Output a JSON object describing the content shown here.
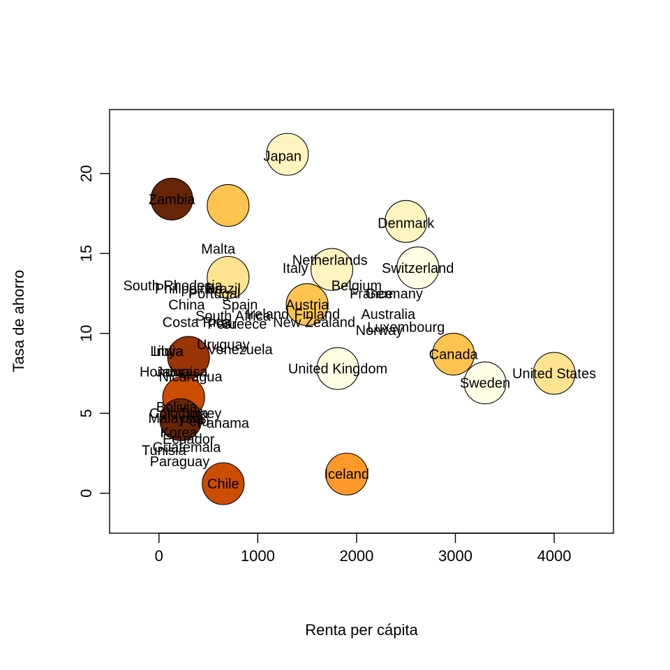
{
  "chart_data": {
    "type": "scatter",
    "title": "",
    "xlabel": "Renta per cápita",
    "ylabel": "Tasa de ahorro",
    "xlim": [
      -500,
      4600
    ],
    "ylim": [
      -2.5,
      24
    ],
    "xticks": [
      "0",
      "1000",
      "2000",
      "3000",
      "4000"
    ],
    "yticks": [
      "0",
      "5",
      "10",
      "15",
      "20"
    ],
    "grid": false,
    "bubble_size_encoding": "unlabeled",
    "points": [
      {
        "label": "Japan",
        "x": 1250,
        "y": 21.1,
        "size": 1.38,
        "color": "#FFF4C0"
      },
      {
        "label": "Zambia",
        "x": 130,
        "y": 18.4,
        "size": 1.1,
        "color": "#662506"
      },
      {
        "label": "Malta",
        "x": 600,
        "y": 15.3,
        "size": 1.22,
        "color": "#FEE391"
      },
      {
        "label": "Denmark",
        "x": 2500,
        "y": 16.9,
        "size": 0.93,
        "color": "#FFF4C0"
      },
      {
        "label": "Netherlands",
        "x": 1730,
        "y": 14.6,
        "size": 1.45,
        "color": "#FFF4C0"
      },
      {
        "label": "Italy",
        "x": 1380,
        "y": 14.1,
        "size": 1.15,
        "color": "#FFF4C0"
      },
      {
        "label": "Switzerland",
        "x": 2620,
        "y": 14.1,
        "size": 0.75,
        "color": "#FFFFE5"
      },
      {
        "label": "Belgium",
        "x": 2000,
        "y": 13.0,
        "size": 1.2,
        "color": "#FFF4C0"
      },
      {
        "label": "France",
        "x": 2150,
        "y": 12.5,
        "size": 1.15,
        "color": "#FFF4C0"
      },
      {
        "label": "Germany",
        "x": 2380,
        "y": 12.5,
        "size": 1.05,
        "color": "#FFF4C0"
      },
      {
        "label": "South Rhodesia",
        "x": 140,
        "y": 13.0,
        "size": 1.4,
        "color": "#993404"
      },
      {
        "label": "Philippines",
        "x": 300,
        "y": 12.8,
        "size": 1.3,
        "color": "#993404"
      },
      {
        "label": "Brazil",
        "x": 650,
        "y": 12.8,
        "size": 1.28,
        "color": "#CC4C02"
      },
      {
        "label": "Portugal",
        "x": 560,
        "y": 12.5,
        "size": 1.25,
        "color": "#CC4C02"
      },
      {
        "label": "Austria",
        "x": 1500,
        "y": 11.8,
        "size": 0.62,
        "color": "#FEC44F"
      },
      {
        "label": "China",
        "x": 280,
        "y": 11.8,
        "size": 1.35,
        "color": "#993404"
      },
      {
        "label": "Spain",
        "x": 820,
        "y": 11.8,
        "size": 1.3,
        "color": "#CC4C02"
      },
      {
        "label": "South Africa",
        "x": 750,
        "y": 11.1,
        "size": 1.3,
        "color": "#CC4C02"
      },
      {
        "label": "Ireland",
        "x": 1100,
        "y": 11.2,
        "size": 1.25,
        "color": "#EC7014"
      },
      {
        "label": "Finland",
        "x": 1600,
        "y": 11.2,
        "size": 1.1,
        "color": "#FEE391"
      },
      {
        "label": "Australia",
        "x": 2320,
        "y": 11.2,
        "size": 1.0,
        "color": "#FFF4C0"
      },
      {
        "label": "Costa Rica",
        "x": 380,
        "y": 10.7,
        "size": 1.3,
        "color": "#993404"
      },
      {
        "label": "Peru",
        "x": 640,
        "y": 10.6,
        "size": 1.3,
        "color": "#993404"
      },
      {
        "label": "Greece",
        "x": 860,
        "y": 10.6,
        "size": 1.3,
        "color": "#CC4C02"
      },
      {
        "label": "New Zealand",
        "x": 1570,
        "y": 10.7,
        "size": 1.05,
        "color": "#FEE391"
      },
      {
        "label": "Luxembourg",
        "x": 2500,
        "y": 10.4,
        "size": 0.72,
        "color": "#FFF4C0"
      },
      {
        "label": "Norway",
        "x": 2230,
        "y": 10.2,
        "size": 1.05,
        "color": "#FFF4C0"
      },
      {
        "label": "Uruguay",
        "x": 650,
        "y": 9.3,
        "size": 1.3,
        "color": "#993404"
      },
      {
        "label": "Venezuela",
        "x": 820,
        "y": 9.0,
        "size": 1.3,
        "color": "#CC4C02"
      },
      {
        "label": "Canada",
        "x": 2980,
        "y": 8.7,
        "size": 0.6,
        "color": "#FEC44F"
      },
      {
        "label": "Libya",
        "x": 80,
        "y": 8.9,
        "size": 0.93,
        "color": "#662506"
      },
      {
        "label": "India",
        "x": 90,
        "y": 8.9,
        "size": 0.95,
        "color": "#662506"
      },
      {
        "label": "Honduras",
        "x": 110,
        "y": 7.6,
        "size": 0.95,
        "color": "#662506"
      },
      {
        "label": "Jamaica",
        "x": 230,
        "y": 7.6,
        "size": 0.95,
        "color": "#662506"
      },
      {
        "label": "Nicaragua",
        "x": 320,
        "y": 7.3,
        "size": 0.95,
        "color": "#662506"
      },
      {
        "label": "United Kingdom",
        "x": 1810,
        "y": 7.8,
        "size": 0.48,
        "color": "#FFFFE5"
      },
      {
        "label": "United States",
        "x": 4000,
        "y": 7.5,
        "size": 0.5,
        "color": "#FEE391"
      },
      {
        "label": "Sweden",
        "x": 3300,
        "y": 6.9,
        "size": 0.55,
        "color": "#FFFFE5"
      },
      {
        "label": "Bolivia",
        "x": 180,
        "y": 5.4,
        "size": 1.0,
        "color": "#662506"
      },
      {
        "label": "Colombia",
        "x": 200,
        "y": 5.0,
        "size": 1.0,
        "color": "#662506"
      },
      {
        "label": "Turkey",
        "x": 420,
        "y": 5.0,
        "size": 1.0,
        "color": "#662506"
      },
      {
        "label": "Malaysia",
        "x": 170,
        "y": 4.7,
        "size": 1.0,
        "color": "#662506"
      },
      {
        "label": "Peru",
        "x": 360,
        "y": 4.5,
        "size": 1.0,
        "color": "#662506"
      },
      {
        "label": "Panama",
        "x": 650,
        "y": 4.4,
        "size": 1.0,
        "color": "#662506"
      },
      {
        "label": "Korea",
        "x": 200,
        "y": 3.8,
        "size": 1.0,
        "color": "#662506"
      },
      {
        "label": "Ecuador",
        "x": 300,
        "y": 3.4,
        "size": 1.0,
        "color": "#662506"
      },
      {
        "label": "Guatemala",
        "x": 280,
        "y": 2.9,
        "size": 1.0,
        "color": "#662506"
      },
      {
        "label": "Tunisia",
        "x": 50,
        "y": 2.7,
        "size": 1.0,
        "color": "#662506"
      },
      {
        "label": "Paraguay",
        "x": 210,
        "y": 2.0,
        "size": 1.0,
        "color": "#662506"
      },
      {
        "label": "Chile",
        "x": 650,
        "y": 0.6,
        "size": 0.53,
        "color": "#CC4C02"
      },
      {
        "label": "Iceland",
        "x": 1900,
        "y": 1.2,
        "size": 0.33,
        "color": "#FE9929"
      }
    ],
    "circles_drawn": [
      {
        "x": 1300,
        "y": 21.2,
        "color": "#FFF4C0"
      },
      {
        "x": 700,
        "y": 18.0,
        "color": "#FEC44F"
      },
      {
        "x": 2500,
        "y": 17.0,
        "color": "#FFF4C0"
      },
      {
        "x": 130,
        "y": 18.4,
        "color": "#662506"
      },
      {
        "x": 1750,
        "y": 14.0,
        "color": "#FFF4C0"
      },
      {
        "x": 700,
        "y": 13.5,
        "color": "#FEE391"
      },
      {
        "x": 1500,
        "y": 11.8,
        "color": "#FEC44F"
      },
      {
        "x": 2620,
        "y": 14.1,
        "color": "#FFFFE5"
      },
      {
        "x": 2980,
        "y": 8.7,
        "color": "#FEC44F"
      },
      {
        "x": 4000,
        "y": 7.5,
        "color": "#FEE391"
      },
      {
        "x": 3300,
        "y": 6.9,
        "color": "#FFFFE5"
      },
      {
        "x": 1810,
        "y": 7.8,
        "color": "#FFFFE5"
      },
      {
        "x": 650,
        "y": 0.6,
        "color": "#CC4C02"
      },
      {
        "x": 1900,
        "y": 1.2,
        "color": "#FE9929"
      },
      {
        "x": 250,
        "y": 6.0,
        "color": "#CC4C02"
      },
      {
        "x": 300,
        "y": 8.5,
        "color": "#993404"
      },
      {
        "x": 220,
        "y": 4.6,
        "color": "#662506"
      }
    ]
  }
}
